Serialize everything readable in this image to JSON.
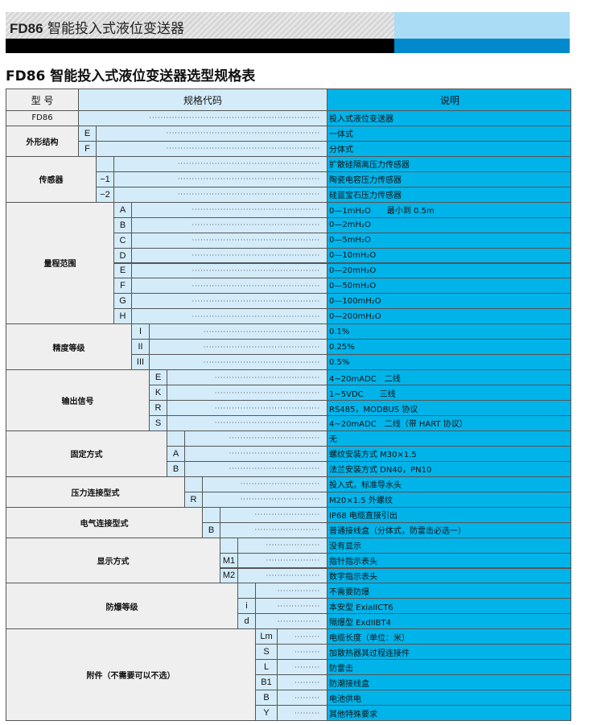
{
  "banner": {
    "title_code": "FD86",
    "title_text": "智能投入式液位变送器"
  },
  "page_title": "FD86 智能投入式液位变送器选型规格表",
  "colors": {
    "label_bg": "#efefef",
    "code_bg": "#d4ecf9",
    "desc_bg": "#00b4ea",
    "banner_blue": "#0089cc"
  },
  "table": {
    "headers": {
      "model": "型 号",
      "spec": "规格代码",
      "desc": "说明"
    },
    "model_row": {
      "label": "FD86",
      "desc": "投入式液位变送器"
    },
    "groups": [
      {
        "label": "外形结构",
        "items": [
          {
            "code": "E",
            "desc": "一体式"
          },
          {
            "code": "F",
            "desc": "分体式"
          }
        ]
      },
      {
        "label": "传感器",
        "items": [
          {
            "code": "",
            "desc": "扩散硅隔离压力传感器"
          },
          {
            "code": "−1",
            "desc": "陶瓷电容压力传感器"
          },
          {
            "code": "−2",
            "desc": "硅蓝宝石压力传感器"
          }
        ]
      },
      {
        "label": "量程范围",
        "items": [
          {
            "code": "A",
            "desc": "0—1mH₂O　　最小到 0.5m"
          },
          {
            "code": "B",
            "desc": "0—2mH₂O"
          },
          {
            "code": "C",
            "desc": "0—5mH₂O"
          },
          {
            "code": "D",
            "desc": "0—10mH₂O"
          },
          {
            "code": "E",
            "desc": "0—20mH₂O"
          },
          {
            "code": "F",
            "desc": "0—50mH₂O"
          },
          {
            "code": "G",
            "desc": "0—100mH₂O"
          },
          {
            "code": "H",
            "desc": "0—200mH₂O"
          }
        ]
      },
      {
        "label": "精度等级",
        "items": [
          {
            "code": "I",
            "desc": "0.1%"
          },
          {
            "code": "II",
            "desc": "0.25%"
          },
          {
            "code": "III",
            "desc": "0.5%"
          }
        ]
      },
      {
        "label": "输出信号",
        "items": [
          {
            "code": "E",
            "desc": "4~20mADC　二线"
          },
          {
            "code": "K",
            "desc": "1~5VDC　　三线"
          },
          {
            "code": "R",
            "desc": "RS485，MODBUS 协议"
          },
          {
            "code": "S",
            "desc": "4~20mADC　二线（带 HART 协议）"
          }
        ]
      },
      {
        "label": "固定方式",
        "items": [
          {
            "code": "",
            "desc": "无"
          },
          {
            "code": "A",
            "desc": "螺纹安装方式 M30×1.5"
          },
          {
            "code": "B",
            "desc": "法兰安装方式 DN40，PN10"
          }
        ]
      },
      {
        "label": "压力连接型式",
        "items": [
          {
            "code": "",
            "desc": "投入式，标准导水头"
          },
          {
            "code": "R",
            "desc": "M20×1.5 外螺纹"
          }
        ]
      },
      {
        "label": "电气连接型式",
        "items": [
          {
            "code": "",
            "desc": "IP68 电缆直接引出"
          },
          {
            "code": "B",
            "desc": "普通接线盒（分体式，防雷击必选一）"
          }
        ]
      },
      {
        "label": "显示方式",
        "items": [
          {
            "code": "",
            "desc": "没有显示"
          },
          {
            "code": "M1",
            "desc": "指针指示表头"
          },
          {
            "code": "M2",
            "desc": "数字指示表头"
          }
        ]
      },
      {
        "label": "防爆等级",
        "items": [
          {
            "code": "",
            "desc": "不需要防爆"
          },
          {
            "code": "i",
            "desc": "本安型 ExiaIICT6"
          },
          {
            "code": "d",
            "desc": "隔爆型 ExdIIBT4"
          }
        ]
      },
      {
        "label": "附件（不需要可以不选）",
        "items": [
          {
            "code": "Lm",
            "desc": "电缆长度（单位：米）"
          },
          {
            "code": "S",
            "desc": "加散热器其过程连接件"
          },
          {
            "code": "L",
            "desc": "防雷击"
          },
          {
            "code": "B1",
            "desc": "防潮接线盒"
          },
          {
            "code": "B",
            "desc": "电池供电"
          },
          {
            "code": "Y",
            "desc": "其他特殊要求"
          }
        ]
      }
    ]
  }
}
